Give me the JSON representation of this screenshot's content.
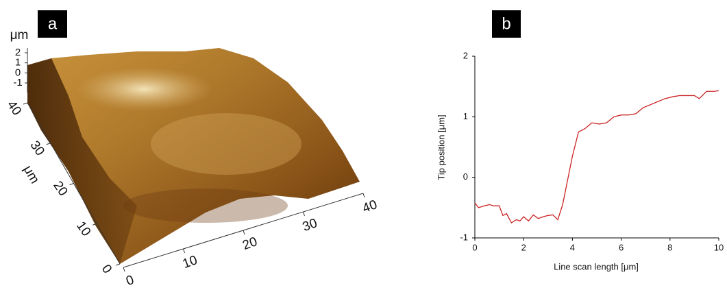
{
  "chart_data": [
    {
      "type": "surface",
      "panel_label": "a",
      "z_label": "μm",
      "y_label": "μm",
      "zlim": [
        -1,
        2
      ],
      "zticks": [
        2,
        1,
        0,
        -1
      ],
      "ylim": [
        0,
        40
      ],
      "yticks": [
        0,
        10,
        20,
        30,
        40
      ],
      "xlim": [
        0,
        40
      ],
      "xticks": [
        0,
        10,
        20,
        30,
        40
      ]
    },
    {
      "type": "line",
      "panel_label": "b",
      "x_label": "Line scan length [μm]",
      "y_label": "Tip position [μm]",
      "xlim": [
        0,
        10
      ],
      "ylim": [
        -1,
        2
      ],
      "xticks": [
        0,
        2,
        4,
        6,
        8,
        10
      ],
      "yticks": [
        -1,
        0,
        1,
        2
      ],
      "series": [
        {
          "color": "#cc2222",
          "x": [
            0,
            0.15,
            0.4,
            0.6,
            0.75,
            1.0,
            1.15,
            1.3,
            1.5,
            1.7,
            1.85,
            2.0,
            2.2,
            2.4,
            2.6,
            2.8,
            3.0,
            3.2,
            3.4,
            3.6,
            3.8,
            4.0,
            4.25,
            4.5,
            4.8,
            5.1,
            5.4,
            5.7,
            6.0,
            6.3,
            6.6,
            6.9,
            7.2,
            7.5,
            7.8,
            8.1,
            8.4,
            8.7,
            9.0,
            9.2,
            9.5,
            9.8,
            10
          ],
          "values": [
            -0.42,
            -0.5,
            -0.47,
            -0.45,
            -0.47,
            -0.47,
            -0.63,
            -0.6,
            -0.75,
            -0.7,
            -0.72,
            -0.65,
            -0.72,
            -0.62,
            -0.68,
            -0.65,
            -0.63,
            -0.62,
            -0.7,
            -0.45,
            -0.05,
            0.35,
            0.75,
            0.8,
            0.9,
            0.88,
            0.9,
            1.0,
            1.03,
            1.03,
            1.05,
            1.15,
            1.2,
            1.25,
            1.3,
            1.33,
            1.35,
            1.35,
            1.35,
            1.3,
            1.42,
            1.42,
            1.43
          ]
        }
      ]
    }
  ]
}
